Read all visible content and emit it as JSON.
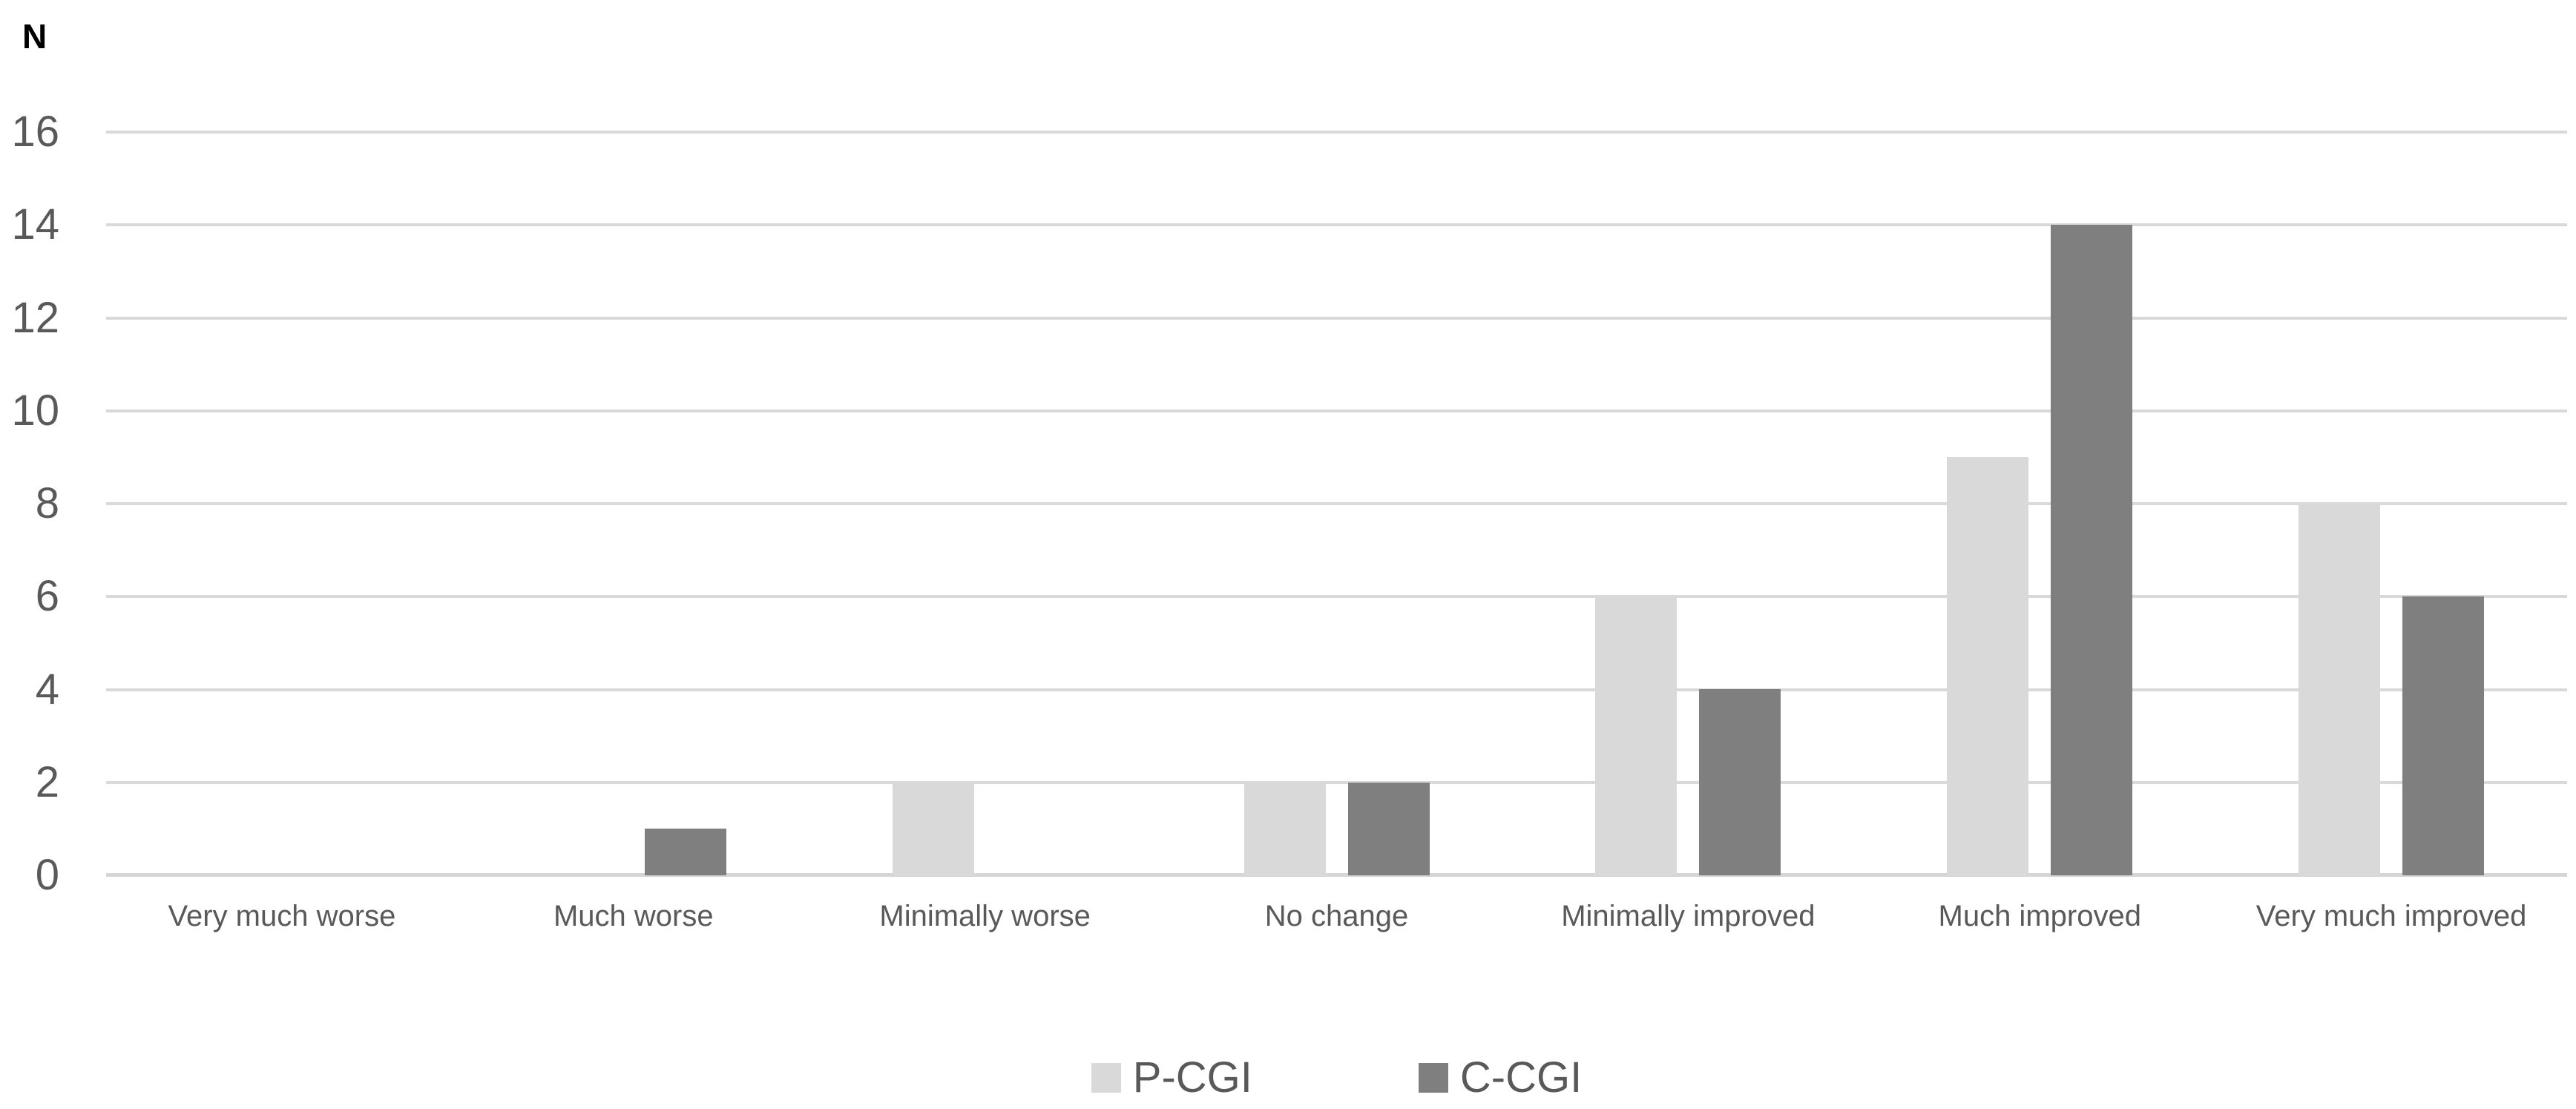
{
  "chart_data": {
    "type": "bar",
    "title": "",
    "ylabel": "N",
    "xlabel": "",
    "categories": [
      "Very much worse",
      "Much worse",
      "Minimally worse",
      "No change",
      "Minimally improved",
      "Much improved",
      "Very much improved"
    ],
    "series": [
      {
        "name": "P-CGI",
        "color": "#d9d9d9",
        "values": [
          0,
          0,
          2,
          2,
          6,
          9,
          8
        ]
      },
      {
        "name": "C-CGI",
        "color": "#7f7f7f",
        "values": [
          0,
          1,
          0,
          2,
          4,
          14,
          6
        ]
      }
    ],
    "y_ticks": [
      0,
      2,
      4,
      6,
      8,
      10,
      12,
      14,
      16
    ],
    "ylim": [
      0,
      16
    ],
    "grid": true,
    "legend_position": "bottom"
  },
  "axis": {
    "title": "N"
  },
  "colors": {
    "text": "#595959",
    "axis_title": "#000000",
    "gridline": "#d9d9d9",
    "axis_line": "#d6d6d6",
    "background": "#ffffff"
  }
}
